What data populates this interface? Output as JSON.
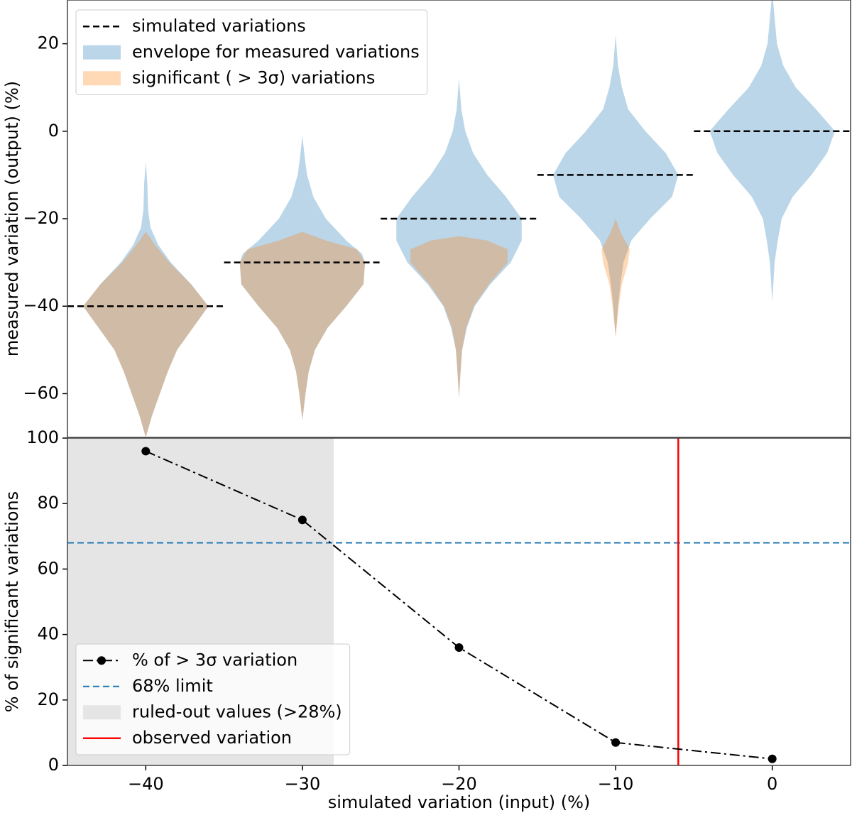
{
  "chart_data": [
    {
      "type": "violin",
      "ylabel": "measured variation (output) (%)",
      "xlim": [
        -45,
        5
      ],
      "ylim": [
        -70,
        30
      ],
      "yticks": [
        {
          "value": -60,
          "label": "−60"
        },
        {
          "value": -40,
          "label": "−40"
        },
        {
          "value": -20,
          "label": "−20"
        },
        0,
        20
      ],
      "legend": "upper left",
      "x": [
        -40,
        -30,
        -20,
        -10,
        0
      ],
      "series": [
        {
          "name": "simulated variations",
          "color": "#000000",
          "values": [
            -40,
            -30,
            -20,
            -10,
            0
          ]
        }
      ],
      "violins": [
        {
          "name": "envelope for measured variations",
          "color": "#1f77b4",
          "alpha": 0.3,
          "shapes": [
            {
              "y": [
                -7,
                -12,
                -18,
                -22,
                -26,
                -30,
                -35,
                -40,
                -45,
                -50,
                -55,
                -60,
                -65,
                -70
              ],
              "width": [
                0,
                0.1,
                0.15,
                0.3,
                0.8,
                1.6,
                2.9,
                4.0,
                3.0,
                2.0,
                1.4,
                0.9,
                0.4,
                0
              ]
            },
            {
              "y": [
                -1,
                -6,
                -10,
                -15,
                -20,
                -25,
                -28,
                -30,
                -35,
                -40,
                -45,
                -50,
                -55,
                -60,
                -66
              ],
              "width": [
                0,
                0.15,
                0.3,
                0.7,
                1.5,
                2.8,
                3.8,
                4.0,
                3.9,
                2.8,
                1.6,
                0.8,
                0.4,
                0.2,
                0
              ]
            },
            {
              "y": [
                12,
                5,
                0,
                -5,
                -10,
                -15,
                -20,
                -25,
                -30,
                -35,
                -40,
                -45,
                -50,
                -55,
                -61
              ],
              "width": [
                0,
                0.15,
                0.4,
                0.9,
                1.8,
                3.0,
                4.0,
                4.0,
                3.3,
                2.0,
                1.0,
                0.5,
                0.2,
                0.1,
                0
              ]
            },
            {
              "y": [
                22,
                15,
                10,
                5,
                0,
                -5,
                -10,
                -15,
                -20,
                -25,
                -30,
                -35,
                -40,
                -47
              ],
              "width": [
                0,
                0.15,
                0.4,
                0.8,
                1.9,
                3.2,
                4.0,
                3.6,
                2.2,
                1.0,
                0.5,
                0.3,
                0.15,
                0
              ]
            },
            {
              "y": [
                30,
                20,
                15,
                10,
                5,
                0,
                -5,
                -10,
                -15,
                -20,
                -25,
                -30,
                -39
              ],
              "width": [
                0.05,
                0.3,
                0.7,
                1.5,
                2.8,
                4.0,
                3.5,
                2.5,
                1.3,
                0.6,
                0.35,
                0.15,
                0
              ]
            }
          ]
        },
        {
          "name": "significant ( > 3σ) variations",
          "color": "#ff7f0e",
          "alpha": 0.3,
          "shapes": [
            {
              "y": [
                -23,
                -26,
                -30,
                -35,
                -40,
                -45,
                -50,
                -55,
                -60,
                -65,
                -70
              ],
              "width": [
                0,
                0.6,
                1.5,
                2.9,
                4.0,
                3.0,
                2.0,
                1.4,
                0.9,
                0.4,
                0
              ]
            },
            {
              "y": [
                -23,
                -25,
                -27,
                -30,
                -35,
                -40,
                -45,
                -50,
                -55,
                -60,
                -66
              ],
              "width": [
                0,
                1.5,
                3.5,
                4.0,
                3.9,
                2.8,
                1.6,
                0.8,
                0.4,
                0.2,
                0
              ]
            },
            {
              "y": [
                -24,
                -25,
                -27,
                -30,
                -35,
                -40,
                -45,
                -50,
                -55,
                -61
              ],
              "width": [
                0,
                1.8,
                3.1,
                3.1,
                1.9,
                0.95,
                0.45,
                0.2,
                0.1,
                0
              ]
            },
            {
              "y": [
                -20,
                -23,
                -27,
                -30,
                -35,
                -40,
                -47
              ],
              "width": [
                0,
                0.3,
                0.9,
                0.8,
                0.4,
                0.2,
                0
              ]
            },
            null
          ]
        }
      ]
    },
    {
      "type": "line",
      "xlabel": "simulated variation (input) (%)",
      "ylabel": "% of significant variations",
      "xlim": [
        -45,
        5
      ],
      "ylim": [
        0,
        100
      ],
      "xticks": [
        {
          "value": -40,
          "label": "−40"
        },
        {
          "value": -30,
          "label": "−30"
        },
        {
          "value": -20,
          "label": "−20"
        },
        {
          "value": -10,
          "label": "−10"
        },
        0
      ],
      "yticks": [
        0,
        20,
        40,
        60,
        80,
        100
      ],
      "legend": "lower left",
      "x": [
        -40,
        -30,
        -20,
        -10,
        0
      ],
      "series": [
        {
          "name": "% of  > 3σ variation",
          "color": "#000000",
          "values": [
            96,
            75,
            36,
            7,
            2
          ]
        }
      ],
      "hline": {
        "name": "68% limit",
        "value": 68,
        "color": "#1f77b4"
      },
      "span": {
        "name": "ruled-out values (>28%)",
        "xlim": [
          -45,
          -28
        ],
        "color": "#e5e5e5"
      },
      "vline": {
        "name": "observed variation",
        "value": -6,
        "color": "#ff0000"
      }
    }
  ]
}
